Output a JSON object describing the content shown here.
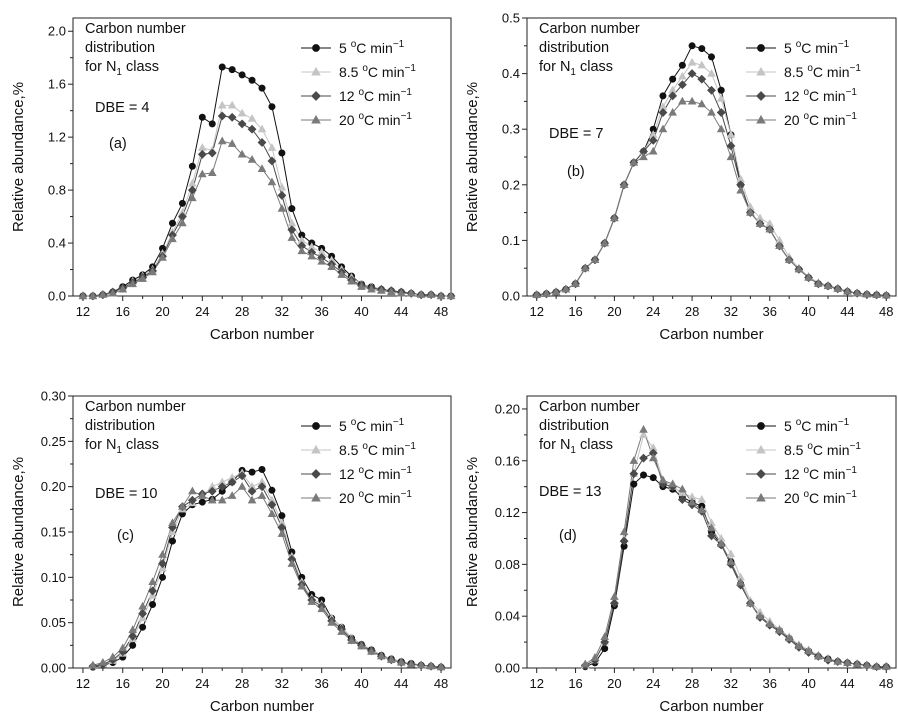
{
  "figure": {
    "panels": [
      {
        "annotation_lines": [
          "Carbon number",
          "distribution"
        ],
        "class_prefix": "for  N",
        "class_subscript": "1",
        "class_suffix": " class",
        "dbe_text": "DBE = 4",
        "panel_label": "(a)"
      },
      {
        "annotation_lines": [
          "Carbon number",
          "distribution"
        ],
        "class_prefix": "for  N",
        "class_subscript": "1",
        "class_suffix": " class",
        "dbe_text": "DBE = 7",
        "panel_label": "(b)"
      },
      {
        "annotation_lines": [
          "Carbon number",
          "distribution"
        ],
        "class_prefix": "for  N",
        "class_subscript": "1",
        "class_suffix": " class",
        "dbe_text": "DBE = 10",
        "panel_label": "(c)"
      },
      {
        "annotation_lines": [
          "Carbon number",
          "distribution"
        ],
        "class_prefix": "for  N",
        "class_subscript": "1",
        "class_suffix": " class",
        "dbe_text": "DBE = 13",
        "panel_label": "(d)"
      }
    ],
    "legend_unit": "C min",
    "legend_unit_exp": "−1",
    "degree_symbol": "o"
  },
  "chart_data": [
    {
      "type": "line",
      "xlabel": "Carbon  number",
      "ylabel": "Relative abundance,%",
      "xlim": [
        11,
        49
      ],
      "ylim": [
        0,
        2.1
      ],
      "xticks": [
        12,
        16,
        20,
        24,
        28,
        32,
        36,
        40,
        44,
        48
      ],
      "yticks": [
        "0.0",
        "0.4",
        "0.8",
        "1.2",
        "1.6",
        "2.0"
      ],
      "yticks_values": [
        0,
        0.4,
        0.8,
        1.2,
        1.6,
        2.0
      ],
      "grid": false,
      "legend": "top-right",
      "x": [
        12,
        13,
        14,
        15,
        16,
        17,
        18,
        19,
        20,
        21,
        22,
        23,
        24,
        25,
        26,
        27,
        28,
        29,
        30,
        31,
        32,
        33,
        34,
        35,
        36,
        37,
        38,
        39,
        40,
        41,
        42,
        43,
        44,
        45,
        46,
        47,
        48,
        49
      ],
      "series": [
        {
          "name": "5",
          "marker": "circle",
          "color": "#111111",
          "values": [
            0,
            0,
            0.01,
            0.03,
            0.07,
            0.12,
            0.16,
            0.22,
            0.36,
            0.55,
            0.7,
            0.98,
            1.35,
            1.3,
            1.73,
            1.71,
            1.67,
            1.63,
            1.57,
            1.43,
            1.08,
            0.66,
            0.46,
            0.4,
            0.36,
            0.3,
            0.22,
            0.15,
            0.09,
            0.07,
            0.05,
            0.04,
            0.03,
            0.02,
            0.01,
            0.01,
            0,
            0
          ]
        },
        {
          "name": "8.5",
          "marker": "triangle",
          "color": "#c4c4c4",
          "values": [
            0,
            0,
            0.01,
            0.03,
            0.06,
            0.11,
            0.15,
            0.2,
            0.32,
            0.48,
            0.63,
            0.85,
            1.12,
            1.1,
            1.44,
            1.44,
            1.38,
            1.34,
            1.26,
            1.12,
            0.82,
            0.55,
            0.42,
            0.37,
            0.33,
            0.27,
            0.2,
            0.14,
            0.09,
            0.07,
            0.05,
            0.04,
            0.03,
            0.02,
            0.01,
            0.01,
            0,
            0
          ]
        },
        {
          "name": "12",
          "marker": "diamond",
          "color": "#4a4a4a",
          "values": [
            0,
            0,
            0.01,
            0.03,
            0.06,
            0.1,
            0.14,
            0.19,
            0.3,
            0.46,
            0.6,
            0.8,
            1.07,
            1.08,
            1.36,
            1.35,
            1.3,
            1.26,
            1.16,
            1.02,
            0.76,
            0.5,
            0.38,
            0.33,
            0.29,
            0.24,
            0.18,
            0.12,
            0.08,
            0.06,
            0.05,
            0.04,
            0.03,
            0.02,
            0.01,
            0.01,
            0,
            0
          ]
        },
        {
          "name": "20",
          "marker": "triangle",
          "color": "#7a7a7a",
          "values": [
            0,
            0,
            0.01,
            0.02,
            0.05,
            0.09,
            0.13,
            0.18,
            0.29,
            0.43,
            0.55,
            0.74,
            0.92,
            0.93,
            1.17,
            1.15,
            1.07,
            1.03,
            0.96,
            0.86,
            0.66,
            0.44,
            0.34,
            0.3,
            0.26,
            0.22,
            0.16,
            0.11,
            0.07,
            0.05,
            0.04,
            0.03,
            0.02,
            0.02,
            0.01,
            0.01,
            0,
            0
          ]
        }
      ]
    },
    {
      "type": "line",
      "xlabel": "Carbon  number",
      "ylabel": "Relative  abundance,%",
      "xlim": [
        11,
        49
      ],
      "ylim": [
        0,
        0.5
      ],
      "xticks": [
        12,
        16,
        20,
        24,
        28,
        32,
        36,
        40,
        44,
        48
      ],
      "yticks": [
        "0.0",
        "0.1",
        "0.2",
        "0.3",
        "0.4",
        "0.5"
      ],
      "yticks_values": [
        0,
        0.1,
        0.2,
        0.3,
        0.4,
        0.5
      ],
      "grid": false,
      "legend": "top-right",
      "x": [
        12,
        13,
        14,
        15,
        16,
        17,
        18,
        19,
        20,
        21,
        22,
        23,
        24,
        25,
        26,
        27,
        28,
        29,
        30,
        31,
        32,
        33,
        34,
        35,
        36,
        37,
        38,
        39,
        40,
        41,
        42,
        43,
        44,
        45,
        46,
        47,
        48
      ],
      "series": [
        {
          "name": "5",
          "marker": "circle",
          "color": "#111111",
          "values": [
            0.002,
            0.004,
            0.007,
            0.012,
            0.022,
            0.05,
            0.065,
            0.095,
            0.14,
            0.2,
            0.24,
            0.26,
            0.3,
            0.36,
            0.39,
            0.415,
            0.45,
            0.445,
            0.43,
            0.37,
            0.29,
            0.2,
            0.15,
            0.13,
            0.12,
            0.09,
            0.065,
            0.048,
            0.033,
            0.022,
            0.018,
            0.013,
            0.008,
            0.005,
            0.003,
            0.002,
            0.001
          ]
        },
        {
          "name": "8.5",
          "marker": "triangle",
          "color": "#c4c4c4",
          "values": [
            0.002,
            0.004,
            0.007,
            0.012,
            0.022,
            0.05,
            0.065,
            0.095,
            0.14,
            0.2,
            0.24,
            0.26,
            0.29,
            0.34,
            0.37,
            0.395,
            0.42,
            0.415,
            0.4,
            0.355,
            0.29,
            0.21,
            0.16,
            0.14,
            0.13,
            0.1,
            0.07,
            0.05,
            0.035,
            0.024,
            0.019,
            0.014,
            0.009,
            0.005,
            0.003,
            0.002,
            0.001
          ]
        },
        {
          "name": "12",
          "marker": "diamond",
          "color": "#4a4a4a",
          "values": [
            0.002,
            0.004,
            0.007,
            0.012,
            0.022,
            0.05,
            0.065,
            0.095,
            0.14,
            0.2,
            0.24,
            0.26,
            0.28,
            0.33,
            0.36,
            0.38,
            0.4,
            0.39,
            0.37,
            0.33,
            0.27,
            0.2,
            0.15,
            0.13,
            0.12,
            0.09,
            0.065,
            0.048,
            0.033,
            0.022,
            0.018,
            0.013,
            0.008,
            0.005,
            0.003,
            0.002,
            0.001
          ]
        },
        {
          "name": "20",
          "marker": "triangle",
          "color": "#7a7a7a",
          "values": [
            0.002,
            0.004,
            0.007,
            0.012,
            0.022,
            0.05,
            0.065,
            0.095,
            0.14,
            0.2,
            0.24,
            0.25,
            0.26,
            0.3,
            0.33,
            0.35,
            0.35,
            0.345,
            0.33,
            0.3,
            0.25,
            0.19,
            0.15,
            0.13,
            0.12,
            0.09,
            0.065,
            0.048,
            0.033,
            0.022,
            0.018,
            0.013,
            0.008,
            0.005,
            0.003,
            0.002,
            0.001
          ]
        }
      ]
    },
    {
      "type": "line",
      "xlabel": "Carbon  number",
      "ylabel": "Relative abundance,%",
      "xlim": [
        11,
        49
      ],
      "ylim": [
        0,
        0.3
      ],
      "xticks": [
        12,
        16,
        20,
        24,
        28,
        32,
        36,
        40,
        44,
        48
      ],
      "yticks": [
        "0.00",
        "0.05",
        "0.10",
        "0.15",
        "0.20",
        "0.25",
        "0.30"
      ],
      "yticks_values": [
        0,
        0.05,
        0.1,
        0.15,
        0.2,
        0.25,
        0.3
      ],
      "grid": false,
      "legend": "top-right",
      "x": [
        13,
        14,
        15,
        16,
        17,
        18,
        19,
        20,
        21,
        22,
        23,
        24,
        25,
        26,
        27,
        28,
        29,
        30,
        31,
        32,
        33,
        34,
        35,
        36,
        37,
        38,
        39,
        40,
        41,
        42,
        43,
        44,
        45,
        46,
        47,
        48
      ],
      "series": [
        {
          "name": "5",
          "marker": "circle",
          "color": "#111111",
          "values": [
            0.001,
            0.003,
            0.006,
            0.012,
            0.025,
            0.045,
            0.07,
            0.1,
            0.14,
            0.17,
            0.18,
            0.183,
            0.186,
            0.195,
            0.205,
            0.218,
            0.216,
            0.219,
            0.196,
            0.168,
            0.128,
            0.1,
            0.081,
            0.075,
            0.055,
            0.045,
            0.033,
            0.026,
            0.02,
            0.014,
            0.01,
            0.007,
            0.005,
            0.003,
            0.002,
            0.001
          ]
        },
        {
          "name": "8.5",
          "marker": "triangle",
          "color": "#c4c4c4",
          "values": [
            0.002,
            0.004,
            0.008,
            0.016,
            0.032,
            0.055,
            0.08,
            0.11,
            0.15,
            0.175,
            0.182,
            0.19,
            0.2,
            0.205,
            0.21,
            0.215,
            0.2,
            0.205,
            0.185,
            0.16,
            0.123,
            0.095,
            0.077,
            0.07,
            0.055,
            0.045,
            0.033,
            0.026,
            0.02,
            0.014,
            0.01,
            0.007,
            0.005,
            0.003,
            0.002,
            0.001
          ]
        },
        {
          "name": "12",
          "marker": "diamond",
          "color": "#4a4a4a",
          "values": [
            0.002,
            0.004,
            0.009,
            0.018,
            0.035,
            0.06,
            0.085,
            0.115,
            0.155,
            0.178,
            0.185,
            0.192,
            0.195,
            0.2,
            0.205,
            0.212,
            0.195,
            0.2,
            0.18,
            0.155,
            0.12,
            0.092,
            0.075,
            0.068,
            0.052,
            0.043,
            0.031,
            0.025,
            0.019,
            0.013,
            0.009,
            0.006,
            0.004,
            0.003,
            0.002,
            0.001
          ]
        },
        {
          "name": "20",
          "marker": "triangle",
          "color": "#7a7a7a",
          "values": [
            0.003,
            0.006,
            0.012,
            0.022,
            0.042,
            0.068,
            0.095,
            0.125,
            0.16,
            0.178,
            0.195,
            0.19,
            0.185,
            0.185,
            0.19,
            0.2,
            0.185,
            0.19,
            0.17,
            0.148,
            0.115,
            0.09,
            0.073,
            0.065,
            0.05,
            0.04,
            0.03,
            0.024,
            0.018,
            0.013,
            0.009,
            0.006,
            0.004,
            0.003,
            0.002,
            0.001
          ]
        }
      ]
    },
    {
      "type": "line",
      "xlabel": "Carbon  number",
      "ylabel": "Relative abundance,%",
      "xlim": [
        11,
        49
      ],
      "ylim": [
        0,
        0.21
      ],
      "xticks": [
        12,
        16,
        20,
        24,
        28,
        32,
        36,
        40,
        44,
        48
      ],
      "yticks": [
        "0.00",
        "0.04",
        "0.08",
        "0.12",
        "0.16",
        "0.20"
      ],
      "yticks_values": [
        0,
        0.04,
        0.08,
        0.12,
        0.16,
        0.2
      ],
      "grid": false,
      "legend": "top-right",
      "x": [
        17,
        18,
        19,
        20,
        21,
        22,
        23,
        24,
        25,
        26,
        27,
        28,
        29,
        30,
        31,
        32,
        33,
        34,
        35,
        36,
        37,
        38,
        39,
        40,
        41,
        42,
        43,
        44,
        45,
        46,
        47,
        48
      ],
      "series": [
        {
          "name": "5",
          "marker": "circle",
          "color": "#111111",
          "values": [
            0.001,
            0.004,
            0.015,
            0.048,
            0.094,
            0.142,
            0.149,
            0.147,
            0.14,
            0.138,
            0.132,
            0.128,
            0.125,
            0.105,
            0.095,
            0.082,
            0.065,
            0.05,
            0.04,
            0.034,
            0.029,
            0.023,
            0.017,
            0.013,
            0.009,
            0.007,
            0.005,
            0.004,
            0.003,
            0.002,
            0.001,
            0.001
          ]
        },
        {
          "name": "8.5",
          "marker": "triangle",
          "color": "#c4c4c4",
          "values": [
            0.002,
            0.006,
            0.02,
            0.052,
            0.1,
            0.15,
            0.18,
            0.17,
            0.145,
            0.14,
            0.135,
            0.132,
            0.13,
            0.112,
            0.1,
            0.088,
            0.07,
            0.052,
            0.043,
            0.036,
            0.03,
            0.024,
            0.018,
            0.014,
            0.01,
            0.007,
            0.005,
            0.004,
            0.003,
            0.002,
            0.001,
            0.001
          ]
        },
        {
          "name": "12",
          "marker": "diamond",
          "color": "#4a4a4a",
          "values": [
            0.002,
            0.006,
            0.02,
            0.05,
            0.098,
            0.15,
            0.162,
            0.166,
            0.142,
            0.14,
            0.13,
            0.126,
            0.121,
            0.102,
            0.095,
            0.08,
            0.064,
            0.05,
            0.039,
            0.033,
            0.028,
            0.022,
            0.016,
            0.012,
            0.009,
            0.006,
            0.005,
            0.004,
            0.003,
            0.002,
            0.001,
            0.001
          ]
        },
        {
          "name": "20",
          "marker": "triangle",
          "color": "#7a7a7a",
          "values": [
            0.003,
            0.008,
            0.024,
            0.055,
            0.105,
            0.16,
            0.184,
            0.162,
            0.145,
            0.142,
            0.138,
            0.128,
            0.122,
            0.108,
            0.096,
            0.082,
            0.066,
            0.05,
            0.04,
            0.034,
            0.029,
            0.023,
            0.017,
            0.013,
            0.009,
            0.007,
            0.005,
            0.004,
            0.003,
            0.002,
            0.001,
            0.001
          ]
        }
      ]
    }
  ]
}
